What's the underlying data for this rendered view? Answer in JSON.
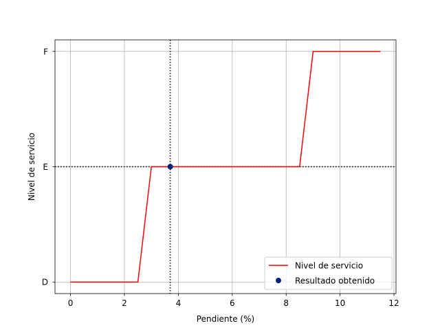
{
  "chart_data": {
    "type": "line",
    "title": "",
    "xlabel": "Pendiente (%)",
    "ylabel": "Nivel de servicio",
    "xlim": [
      -0.575,
      12.075
    ],
    "ylim": [
      -0.1,
      2.1
    ],
    "x_ticks": [
      0,
      2,
      4,
      6,
      8,
      10,
      12
    ],
    "x_tick_labels": [
      "0",
      "2",
      "4",
      "6",
      "8",
      "10",
      "12"
    ],
    "y_ticks": [
      0,
      1,
      2
    ],
    "y_tick_labels": [
      "D",
      "E",
      "F"
    ],
    "grid": true,
    "legend_position": "lower right",
    "series": [
      {
        "name": "Nivel de servicio",
        "kind": "line",
        "color": "#ff0000",
        "points": [
          [
            0,
            0
          ],
          [
            0.5,
            0
          ],
          [
            1,
            0
          ],
          [
            1.5,
            0
          ],
          [
            2,
            0
          ],
          [
            2.5,
            0
          ],
          [
            3,
            1
          ],
          [
            3.5,
            1
          ],
          [
            4,
            1
          ],
          [
            4.5,
            1
          ],
          [
            5,
            1
          ],
          [
            5.5,
            1
          ],
          [
            6,
            1
          ],
          [
            6.5,
            1
          ],
          [
            7,
            1
          ],
          [
            7.5,
            1
          ],
          [
            8,
            1
          ],
          [
            8.5,
            1
          ],
          [
            9,
            2
          ],
          [
            9.5,
            2
          ],
          [
            10,
            2
          ],
          [
            10.5,
            2
          ],
          [
            11,
            2
          ],
          [
            11.5,
            2
          ]
        ]
      },
      {
        "name": "Resultado obtenido",
        "kind": "scatter",
        "color": "#00207a",
        "points": [
          [
            3.7,
            1
          ]
        ]
      }
    ],
    "reference_lines": [
      {
        "orientation": "vertical",
        "value": 3.7,
        "style": "dotted",
        "color": "#000000"
      },
      {
        "orientation": "horizontal",
        "value": 1,
        "style": "dotted",
        "color": "#000000"
      }
    ]
  }
}
